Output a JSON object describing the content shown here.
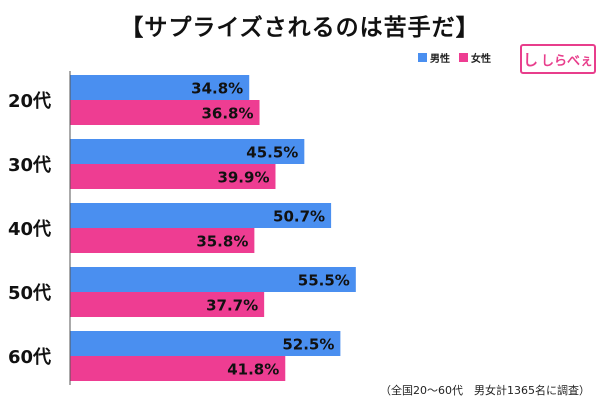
{
  "title": "【サプライズされるのは苦手だ】",
  "legend": [
    {
      "label": "男性",
      "color": "#4a8ff0"
    },
    {
      "label": "女性",
      "color": "#ee3d92"
    }
  ],
  "brand": {
    "mark": "し",
    "text": "しらべぇ"
  },
  "footnote": "（全国20～60代　男女計1365名に調査）",
  "chart_data": {
    "type": "bar",
    "orientation": "horizontal",
    "categories": [
      "20代",
      "30代",
      "40代",
      "50代",
      "60代"
    ],
    "series": [
      {
        "name": "男性",
        "color": "#4a8ff0",
        "values": [
          34.8,
          45.5,
          50.7,
          55.5,
          52.5
        ]
      },
      {
        "name": "女性",
        "color": "#ee3d92",
        "values": [
          36.8,
          39.9,
          35.8,
          37.7,
          41.8
        ]
      }
    ],
    "value_suffix": "%",
    "xlim": [
      0,
      100
    ],
    "grid": false
  }
}
